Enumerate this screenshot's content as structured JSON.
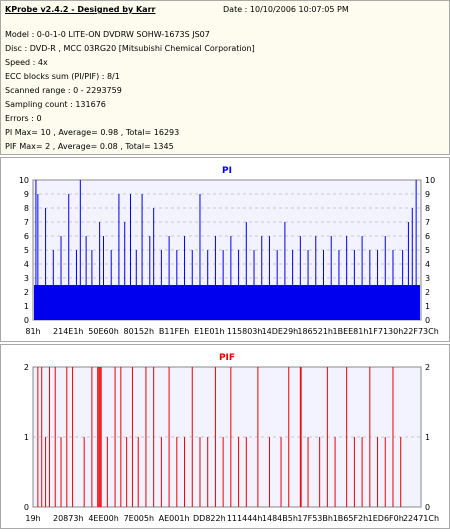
{
  "header": {
    "title": "KProbe v2.4.2 - Designed by Karr",
    "date": "Date : 10/10/2006 10:07:05 PM",
    "lines": [
      "Model : 0-0-1-0 LITE-ON DVDRW SOHW-1673S JS07",
      "Disc : DVD-R , MCC 03RG20   [Mitsubishi Chemical Corporation]",
      "Speed : 4x",
      "ECC blocks sum (PI/PIF) : 8/1",
      "Scanned range : 0 - 2293759",
      "Sampling count : 131676",
      "Errors : 0",
      "PI Max= 10 , Average= 0.98 , Total= 16293",
      "PIF Max= 2 , Average= 0.08 , Total= 1345"
    ]
  },
  "colors": {
    "pi": "#0000ee",
    "pif": "#ee0000",
    "plot_bg": "#f3f3ff",
    "grid": "#9a9ab0"
  },
  "chart_data": [
    {
      "type": "bar",
      "title": "PI",
      "ylim": [
        0,
        10
      ],
      "yticks": [
        0,
        1,
        2,
        3,
        4,
        5,
        6,
        7,
        8,
        9,
        10
      ],
      "xticks": [
        "81h",
        "214E1h",
        "50E60h",
        "80152h",
        "B11FEh",
        "E1E01h",
        "115803h",
        "14DE29h",
        "186521h",
        "1BEE81h",
        "1F7130h",
        "22F73Ch"
      ],
      "baseline": 2.5,
      "spikes": [
        {
          "x": 0.005,
          "v": 10
        },
        {
          "x": 0.01,
          "v": 9
        },
        {
          "x": 0.03,
          "v": 8
        },
        {
          "x": 0.05,
          "v": 5
        },
        {
          "x": 0.07,
          "v": 6
        },
        {
          "x": 0.09,
          "v": 9
        },
        {
          "x": 0.11,
          "v": 5
        },
        {
          "x": 0.12,
          "v": 10
        },
        {
          "x": 0.135,
          "v": 6
        },
        {
          "x": 0.15,
          "v": 5
        },
        {
          "x": 0.17,
          "v": 7
        },
        {
          "x": 0.18,
          "v": 6
        },
        {
          "x": 0.2,
          "v": 5
        },
        {
          "x": 0.22,
          "v": 9
        },
        {
          "x": 0.235,
          "v": 7
        },
        {
          "x": 0.25,
          "v": 9
        },
        {
          "x": 0.265,
          "v": 5
        },
        {
          "x": 0.28,
          "v": 9
        },
        {
          "x": 0.3,
          "v": 6
        },
        {
          "x": 0.31,
          "v": 8
        },
        {
          "x": 0.33,
          "v": 5
        },
        {
          "x": 0.35,
          "v": 6
        },
        {
          "x": 0.37,
          "v": 5
        },
        {
          "x": 0.39,
          "v": 6
        },
        {
          "x": 0.41,
          "v": 5
        },
        {
          "x": 0.43,
          "v": 9
        },
        {
          "x": 0.45,
          "v": 5
        },
        {
          "x": 0.47,
          "v": 6
        },
        {
          "x": 0.49,
          "v": 5
        },
        {
          "x": 0.51,
          "v": 6
        },
        {
          "x": 0.53,
          "v": 5
        },
        {
          "x": 0.55,
          "v": 7
        },
        {
          "x": 0.57,
          "v": 5
        },
        {
          "x": 0.59,
          "v": 6
        },
        {
          "x": 0.61,
          "v": 6
        },
        {
          "x": 0.63,
          "v": 5
        },
        {
          "x": 0.65,
          "v": 7
        },
        {
          "x": 0.67,
          "v": 5
        },
        {
          "x": 0.69,
          "v": 6
        },
        {
          "x": 0.71,
          "v": 5
        },
        {
          "x": 0.73,
          "v": 6
        },
        {
          "x": 0.75,
          "v": 5
        },
        {
          "x": 0.77,
          "v": 6
        },
        {
          "x": 0.79,
          "v": 5
        },
        {
          "x": 0.81,
          "v": 6
        },
        {
          "x": 0.83,
          "v": 5
        },
        {
          "x": 0.85,
          "v": 6
        },
        {
          "x": 0.87,
          "v": 5
        },
        {
          "x": 0.89,
          "v": 5
        },
        {
          "x": 0.91,
          "v": 6
        },
        {
          "x": 0.93,
          "v": 5
        },
        {
          "x": 0.955,
          "v": 5
        },
        {
          "x": 0.97,
          "v": 7
        },
        {
          "x": 0.98,
          "v": 8
        },
        {
          "x": 0.99,
          "v": 10
        }
      ]
    },
    {
      "type": "bar",
      "title": "PIF",
      "ylim": [
        0,
        2
      ],
      "yticks": [
        0,
        1,
        2
      ],
      "xticks": [
        "19h",
        "20873h",
        "4EE00h",
        "7E005h",
        "AE001h",
        "DD822h",
        "111444h",
        "1484B5h",
        "17F53Bh",
        "1B65F2h",
        "1ED6F0h",
        "22471Ch"
      ],
      "spikes": [
        {
          "x": 0.01,
          "v": 2
        },
        {
          "x": 0.02,
          "v": 2
        },
        {
          "x": 0.03,
          "v": 1
        },
        {
          "x": 0.04,
          "v": 2
        },
        {
          "x": 0.055,
          "v": 2
        },
        {
          "x": 0.07,
          "v": 1
        },
        {
          "x": 0.085,
          "v": 2
        },
        {
          "x": 0.1,
          "v": 2
        },
        {
          "x": 0.13,
          "v": 1
        },
        {
          "x": 0.15,
          "v": 2
        },
        {
          "x": 0.165,
          "v": 2
        },
        {
          "x": 0.168,
          "v": 2
        },
        {
          "x": 0.171,
          "v": 2
        },
        {
          "x": 0.174,
          "v": 2
        },
        {
          "x": 0.19,
          "v": 1
        },
        {
          "x": 0.21,
          "v": 2
        },
        {
          "x": 0.225,
          "v": 2
        },
        {
          "x": 0.24,
          "v": 1
        },
        {
          "x": 0.255,
          "v": 2
        },
        {
          "x": 0.27,
          "v": 1
        },
        {
          "x": 0.29,
          "v": 2
        },
        {
          "x": 0.31,
          "v": 2
        },
        {
          "x": 0.33,
          "v": 1
        },
        {
          "x": 0.35,
          "v": 2
        },
        {
          "x": 0.37,
          "v": 1
        },
        {
          "x": 0.39,
          "v": 1
        },
        {
          "x": 0.41,
          "v": 2
        },
        {
          "x": 0.43,
          "v": 1
        },
        {
          "x": 0.45,
          "v": 1
        },
        {
          "x": 0.47,
          "v": 2
        },
        {
          "x": 0.49,
          "v": 1
        },
        {
          "x": 0.51,
          "v": 2
        },
        {
          "x": 0.53,
          "v": 1
        },
        {
          "x": 0.55,
          "v": 1
        },
        {
          "x": 0.58,
          "v": 2
        },
        {
          "x": 0.61,
          "v": 1
        },
        {
          "x": 0.64,
          "v": 1
        },
        {
          "x": 0.66,
          "v": 2
        },
        {
          "x": 0.69,
          "v": 2
        },
        {
          "x": 0.692,
          "v": 2
        },
        {
          "x": 0.71,
          "v": 1
        },
        {
          "x": 0.74,
          "v": 1
        },
        {
          "x": 0.76,
          "v": 2
        },
        {
          "x": 0.78,
          "v": 1
        },
        {
          "x": 0.81,
          "v": 2
        },
        {
          "x": 0.83,
          "v": 1
        },
        {
          "x": 0.85,
          "v": 1
        },
        {
          "x": 0.87,
          "v": 2
        },
        {
          "x": 0.89,
          "v": 1
        },
        {
          "x": 0.91,
          "v": 1
        },
        {
          "x": 0.93,
          "v": 2
        },
        {
          "x": 0.95,
          "v": 1
        }
      ]
    }
  ]
}
